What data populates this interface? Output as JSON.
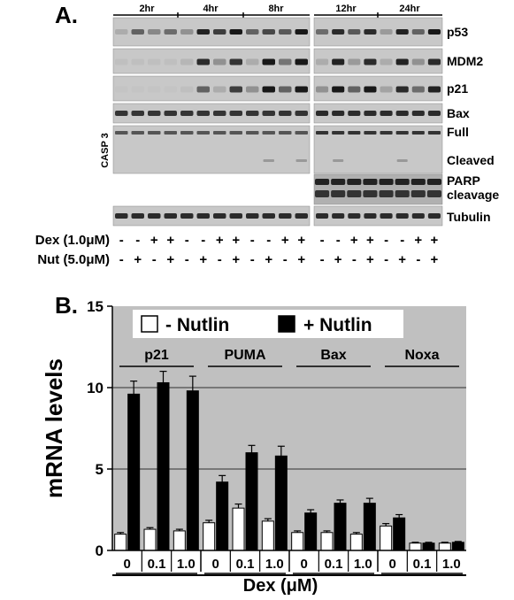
{
  "panel_a": {
    "label": "A.",
    "time_groups_left": [
      "2hr",
      "4hr",
      "8hr"
    ],
    "time_groups_right": [
      "12hr",
      "24hr"
    ],
    "blots": [
      {
        "label": "p53",
        "profile": [
          0.15,
          0.55,
          0.35,
          0.5,
          0.3,
          0.9,
          0.75,
          0.95,
          0.55,
          0.7,
          0.6,
          0.95
        ],
        "profile_right": [
          0.5,
          0.85,
          0.6,
          0.85,
          0.25,
          0.9,
          0.55,
          0.95
        ]
      },
      {
        "label": "MDM2",
        "profile": [
          0.05,
          0.05,
          0.05,
          0.05,
          0.1,
          0.85,
          0.3,
          0.8,
          0.15,
          0.95,
          0.45,
          0.95
        ],
        "profile_right": [
          0.15,
          0.9,
          0.25,
          0.85,
          0.15,
          0.9,
          0.3,
          0.85
        ]
      },
      {
        "label": "p21",
        "profile": [
          0.02,
          0.02,
          0.02,
          0.02,
          0.05,
          0.55,
          0.15,
          0.75,
          0.3,
          0.95,
          0.55,
          0.95
        ],
        "profile_right": [
          0.3,
          0.95,
          0.55,
          0.95,
          0.2,
          0.85,
          0.5,
          0.9
        ]
      },
      {
        "label": "Bax",
        "profile": [
          0.8,
          0.8,
          0.8,
          0.8,
          0.8,
          0.8,
          0.8,
          0.8,
          0.8,
          0.8,
          0.8,
          0.8
        ],
        "profile_right": [
          0.85,
          0.85,
          0.85,
          0.85,
          0.85,
          0.85,
          0.85,
          0.85
        ]
      },
      {
        "label": "Tubulin",
        "profile": [
          0.85,
          0.85,
          0.85,
          0.85,
          0.85,
          0.85,
          0.85,
          0.85,
          0.85,
          0.85,
          0.85,
          0.85
        ],
        "profile_right": [
          0.85,
          0.85,
          0.85,
          0.85,
          0.85,
          0.85,
          0.85,
          0.85
        ]
      }
    ],
    "casp3_side_label": "CASP 3",
    "casp3_full_label": "Full",
    "casp3_cleaved_label": "Cleaved",
    "parp_label_1": "PARP",
    "parp_label_2": "cleavage",
    "treatment_rows": [
      {
        "label": "Dex (1.0μM)",
        "signs": [
          "-",
          "-",
          "+",
          "+",
          "-",
          "-",
          "+",
          "+",
          "-",
          "-",
          "+",
          "+"
        ],
        "signs_right": [
          "-",
          "-",
          "+",
          "+",
          "-",
          "-",
          "+",
          "+"
        ]
      },
      {
        "label": "Nut (5.0μM)",
        "signs": [
          "-",
          "+",
          "-",
          "+",
          "-",
          "+",
          "-",
          "+",
          "-",
          "+",
          "-",
          "+"
        ],
        "signs_right": [
          "-",
          "+",
          "-",
          "+",
          "-",
          "+",
          "-",
          "+"
        ]
      }
    ]
  },
  "panel_b": {
    "label": "B.",
    "legend_minus": "- Nutlin",
    "legend_plus": "+ Nutlin"
  },
  "colors": {
    "blot_bg": "#c8c8c8",
    "chart_bg": "#c0c0c0",
    "bar_open": "#ffffff",
    "bar_filled": "#000000"
  },
  "chart_data": {
    "type": "bar",
    "ylabel": "mRNA levels",
    "xlabel": "Dex (μM)",
    "ylim": [
      0,
      15
    ],
    "yticks": [
      0,
      5,
      10,
      15
    ],
    "grid": true,
    "legend_placement": "top-center",
    "groups": [
      {
        "name": "p21",
        "doses": [
          "0",
          "0.1",
          "1.0"
        ],
        "minus": [
          1.0,
          1.3,
          1.2
        ],
        "plus": [
          9.6,
          10.3,
          9.8
        ],
        "minus_err": [
          0.1,
          0.1,
          0.1
        ],
        "plus_err": [
          0.8,
          0.7,
          0.9
        ]
      },
      {
        "name": "PUMA",
        "doses": [
          "0",
          "0.1",
          "1.0"
        ],
        "minus": [
          1.7,
          2.6,
          1.8
        ],
        "plus": [
          4.2,
          6.0,
          5.8
        ],
        "minus_err": [
          0.15,
          0.25,
          0.15
        ],
        "plus_err": [
          0.4,
          0.45,
          0.6
        ]
      },
      {
        "name": "Bax",
        "doses": [
          "0",
          "0.1",
          "1.0"
        ],
        "minus": [
          1.1,
          1.1,
          1.0
        ],
        "plus": [
          2.3,
          2.9,
          2.9
        ],
        "minus_err": [
          0.1,
          0.1,
          0.1
        ],
        "plus_err": [
          0.2,
          0.2,
          0.3
        ]
      },
      {
        "name": "Noxa",
        "doses": [
          "0",
          "0.1",
          "1.0"
        ],
        "minus": [
          1.5,
          0.45,
          0.45
        ],
        "plus": [
          2.0,
          0.45,
          0.5
        ],
        "minus_err": [
          0.15,
          0.05,
          0.05
        ],
        "plus_err": [
          0.2,
          0.05,
          0.05
        ]
      }
    ],
    "series": [
      {
        "name": "- Nutlin",
        "values": [
          1.0,
          1.3,
          1.2,
          1.7,
          2.6,
          1.8,
          1.1,
          1.1,
          1.0,
          1.5,
          0.45,
          0.45
        ]
      },
      {
        "name": "+ Nutlin",
        "values": [
          9.6,
          10.3,
          9.8,
          4.2,
          6.0,
          5.8,
          2.3,
          2.9,
          2.9,
          2.0,
          0.45,
          0.5
        ]
      }
    ]
  }
}
